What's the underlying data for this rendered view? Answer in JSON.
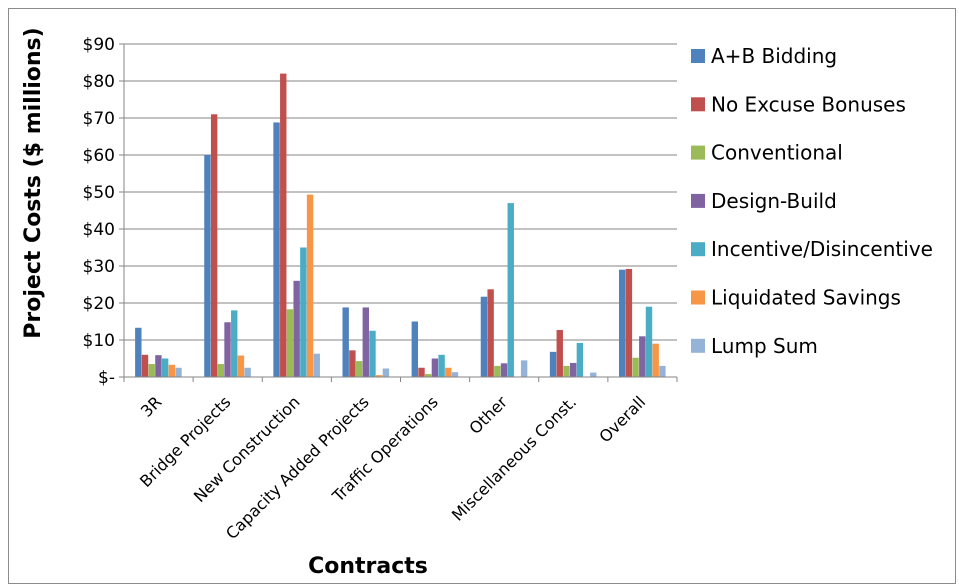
{
  "chart_data": {
    "type": "bar",
    "title": "",
    "xlabel": "Contracts",
    "ylabel": "Project Costs ($ millions)",
    "ylim": [
      0,
      90
    ],
    "y_ticks": [
      {
        "value": 0,
        "label": "$-"
      },
      {
        "value": 10,
        "label": "$10"
      },
      {
        "value": 20,
        "label": "$20"
      },
      {
        "value": 30,
        "label": "$30"
      },
      {
        "value": 40,
        "label": "$40"
      },
      {
        "value": 50,
        "label": "$50"
      },
      {
        "value": 60,
        "label": "$60"
      },
      {
        "value": 70,
        "label": "$70"
      },
      {
        "value": 80,
        "label": "$80"
      },
      {
        "value": 90,
        "label": "$90"
      }
    ],
    "grid": true,
    "legend_position": "right",
    "categories": [
      "3R",
      "Bridge Projects",
      "New Construction",
      "Capacity Added Projects",
      "Traffic Operations",
      "Other",
      "Miscellaneous Const.",
      "Overall"
    ],
    "series": [
      {
        "name": "A+B Bidding",
        "color": "#4f81bd",
        "values": [
          13.3,
          60,
          68.8,
          18.8,
          15,
          21.7,
          6.8,
          29
        ]
      },
      {
        "name": "No Excuse Bonuses",
        "color": "#c0504d",
        "values": [
          6,
          71,
          82,
          7.2,
          2.5,
          23.7,
          12.7,
          29.2
        ]
      },
      {
        "name": "Conventional",
        "color": "#9bbb59",
        "values": [
          3.5,
          3.5,
          18.3,
          4.3,
          0.8,
          3,
          3,
          5.2
        ]
      },
      {
        "name": "Design-Build",
        "color": "#8064a2",
        "values": [
          5.9,
          14.8,
          26,
          18.8,
          5,
          3.7,
          3.8,
          11
        ]
      },
      {
        "name": "Incentive/Disincentive",
        "color": "#4bacc6",
        "values": [
          5,
          18,
          35,
          12.5,
          6,
          47,
          9.2,
          19
        ]
      },
      {
        "name": "Liquidated Savings",
        "color": "#f79646",
        "values": [
          3.3,
          5.8,
          49.3,
          0.5,
          2.5,
          0,
          0,
          9
        ]
      },
      {
        "name": "Lump Sum",
        "color": "#95b3d7",
        "values": [
          2.5,
          2.5,
          6.3,
          2.3,
          1.3,
          4.5,
          1.2,
          3
        ]
      }
    ]
  }
}
